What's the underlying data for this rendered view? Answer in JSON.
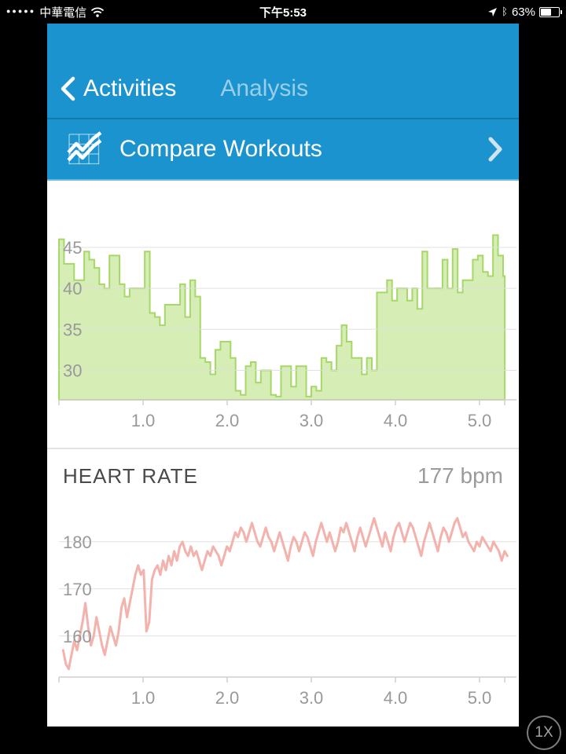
{
  "status_bar": {
    "signal_dots": "●●●●●",
    "carrier": "中華電信",
    "time": "下午5:53",
    "bluetooth_glyph": "ᛒ",
    "battery_percent": "63%",
    "battery_level": 0.6
  },
  "nav": {
    "back_label": "Activities",
    "title": "Analysis"
  },
  "compare_row": {
    "label": "Compare Workouts"
  },
  "heart_rate_section": {
    "title": "HEART RATE",
    "value": "177 bpm"
  },
  "scale_button": {
    "label": "1X"
  },
  "colors": {
    "header_blue": "#1b93cf",
    "green_fill": "#d7edb6",
    "green_stroke": "#a6d868",
    "pink_line": "#f3b2ac",
    "grid": "#dedede",
    "axis_line": "#cfcfcf",
    "axis_label": "#999999"
  },
  "chart_data": [
    {
      "type": "area",
      "title": "",
      "legend": "none",
      "grid": true,
      "x_start": 0,
      "x_step": 0.06,
      "x_max": 5.3,
      "x_ticks": [
        1,
        2,
        3,
        4,
        5
      ],
      "y_ticks": [
        30,
        35,
        40,
        45
      ],
      "ylim": [
        26.4,
        47.5
      ],
      "values": [
        46,
        43,
        43,
        41,
        41,
        44.5,
        43.5,
        42.5,
        40.5,
        40,
        44,
        44,
        40.5,
        39,
        40,
        40,
        40,
        44.5,
        37,
        36.5,
        35.5,
        38,
        38,
        38,
        40.5,
        36.5,
        41,
        39,
        31.5,
        31,
        29.5,
        32.5,
        33.5,
        33.5,
        31.5,
        27.5,
        27,
        30.5,
        31,
        28.5,
        30,
        30,
        27,
        26.8,
        30.5,
        30.5,
        28,
        30.5,
        30.5,
        26.8,
        28,
        27.5,
        31.5,
        31,
        30,
        33,
        35.5,
        33.5,
        31.5,
        31.5,
        29.5,
        31.5,
        30,
        39.5,
        39.5,
        41,
        38.5,
        40,
        40,
        38.5,
        40,
        37.5,
        44.5,
        40,
        40,
        40,
        43.5,
        40,
        44.8,
        39.5,
        41,
        41,
        43.5,
        44,
        42,
        41.5,
        46.5,
        44,
        41.5
      ]
    },
    {
      "type": "line",
      "title": "HEART RATE",
      "unit": "bpm",
      "current_value": 177,
      "legend": "none",
      "grid": true,
      "x_start": 0.05,
      "x_step": 0.033,
      "x_max": 5.3,
      "x_ticks": [
        1,
        2,
        3,
        4,
        5
      ],
      "y_ticks": [
        160,
        170,
        180
      ],
      "ylim": [
        151.3,
        191
      ],
      "values": [
        157,
        154,
        153,
        156,
        159,
        157,
        160,
        163,
        167,
        162,
        158,
        160,
        164,
        161,
        158,
        156,
        159,
        162,
        160,
        158,
        161,
        166,
        168,
        164,
        167,
        170,
        173,
        175,
        173,
        174,
        161,
        163,
        172,
        174,
        175,
        173,
        176,
        174,
        177,
        175,
        178,
        176,
        179,
        180,
        178,
        177,
        179,
        177,
        178,
        176,
        174,
        176,
        178,
        177,
        179,
        178,
        177,
        175,
        177,
        179,
        178,
        180,
        182,
        181,
        183,
        182,
        180,
        182,
        184,
        182,
        180,
        179,
        181,
        183,
        181,
        180,
        178,
        180,
        182,
        180,
        178,
        176,
        179,
        181,
        180,
        178,
        180,
        182,
        181,
        179,
        177,
        180,
        182,
        184,
        182,
        180,
        182,
        180,
        178,
        180,
        183,
        182,
        184,
        182,
        180,
        178,
        181,
        183,
        181,
        179,
        181,
        183,
        185,
        183,
        181,
        179,
        182,
        180,
        178,
        181,
        183,
        184,
        182,
        180,
        182,
        184,
        183,
        181,
        179,
        177,
        180,
        182,
        184,
        182,
        180,
        178,
        181,
        183,
        182,
        180,
        182,
        184,
        185,
        183,
        181,
        182,
        180,
        179,
        178,
        180,
        179,
        181,
        180,
        179,
        178,
        180,
        179,
        178,
        176,
        178,
        177
      ]
    }
  ]
}
